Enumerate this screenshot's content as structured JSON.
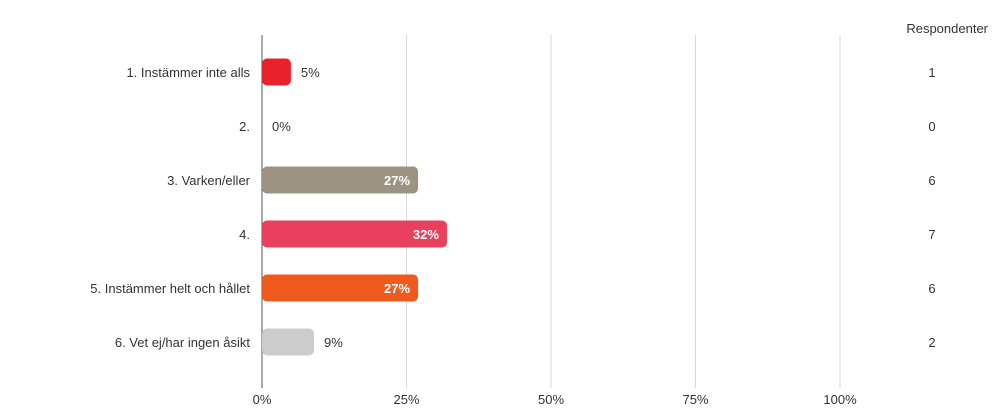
{
  "chart_data": {
    "type": "bar",
    "orientation": "horizontal",
    "title": "",
    "xlabel": "",
    "ylabel": "",
    "count_header": "Respondenter",
    "categories": [
      "1. Instämmer inte alls",
      "2.",
      "3. Varken/eller",
      "4.",
      "5. Instämmer helt och hållet",
      "6. Vet ej/har ingen åsikt"
    ],
    "values": [
      5,
      0,
      27,
      32,
      27,
      9
    ],
    "value_labels": [
      "5%",
      "0%",
      "27%",
      "32%",
      "27%",
      "9%"
    ],
    "counts": [
      "1",
      "0",
      "6",
      "7",
      "6",
      "2"
    ],
    "colors": [
      "#e8212b",
      "#cccccc",
      "#9c9383",
      "#e9405e",
      "#f05a1c",
      "#cccccc"
    ],
    "xlim": [
      0,
      100
    ],
    "xticks": [
      "0%",
      "25%",
      "50%",
      "75%",
      "100%"
    ],
    "grid": true,
    "label_threshold": 15
  }
}
